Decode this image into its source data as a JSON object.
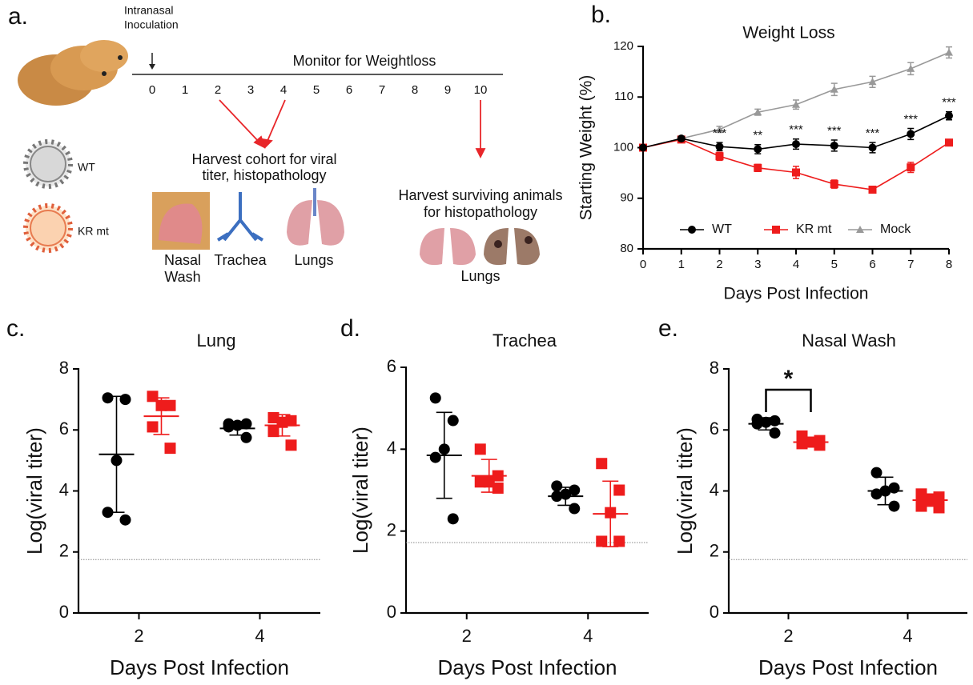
{
  "diagram": {
    "label": "a.",
    "inoculation": [
      "Intranasal",
      "Inoculation"
    ],
    "monitor": "Monitor for Weightloss",
    "timeline": [
      0,
      1,
      2,
      3,
      4,
      5,
      6,
      7,
      8,
      9,
      10
    ],
    "viruses": [
      "WT",
      "KR mt"
    ],
    "harvest_cohort": [
      "Harvest cohort for viral",
      "titer, histopathology"
    ],
    "tissues": [
      [
        "Nasal",
        "Wash"
      ],
      [
        "Trachea"
      ],
      [
        "Lungs"
      ]
    ],
    "harvest_surviving": [
      "Harvest surviving animals",
      "for histopathology"
    ],
    "surviving_tissue": "Lungs"
  },
  "chart_data": [
    {
      "type": "line",
      "panel_label": "b.",
      "title": "Weight Loss",
      "x_label": "Days Post Infection",
      "y_label": "Starting  Weight (%)",
      "x": [
        0,
        1,
        2,
        3,
        4,
        5,
        6,
        7,
        8
      ],
      "xlim": [
        0,
        8
      ],
      "xticks": [
        0,
        1,
        2,
        3,
        4,
        5,
        6,
        7,
        8
      ],
      "ylim": [
        80,
        120
      ],
      "yticks": [
        80,
        90,
        100,
        110,
        120
      ],
      "legend": "lower center",
      "series": [
        {
          "name": "WT",
          "color": "#000000",
          "marker": "circle",
          "values": [
            100,
            101.8,
            100.2,
            99.7,
            100.7,
            100.4,
            100.0,
            102.7,
            106.3
          ],
          "errors": [
            0.3,
            0.4,
            0.8,
            0.9,
            1.0,
            1.1,
            1.0,
            1.1,
            0.8
          ]
        },
        {
          "name": "KR mt",
          "color": "#ee1c1c",
          "marker": "square",
          "values": [
            100,
            101.6,
            98.3,
            96.0,
            95.1,
            92.8,
            91.7,
            96.1,
            101.0
          ],
          "errors": [
            0.3,
            0.4,
            0.8,
            0.7,
            1.2,
            0.8,
            0.6,
            1.0,
            0.6
          ]
        },
        {
          "name": "Mock",
          "color": "#999999",
          "marker": "triangle",
          "values": [
            100,
            101.8,
            103.6,
            107.0,
            108.5,
            111.5,
            113.0,
            115.6,
            118.8
          ],
          "errors": [
            0.3,
            0.3,
            0.6,
            0.6,
            0.9,
            1.2,
            1.1,
            1.2,
            1.1
          ]
        }
      ],
      "annotations": [
        {
          "x": 2,
          "text": "***"
        },
        {
          "x": 3,
          "text": "**"
        },
        {
          "x": 4,
          "text": "***"
        },
        {
          "x": 5,
          "text": "***"
        },
        {
          "x": 6,
          "text": "***"
        },
        {
          "x": 7,
          "text": "***"
        },
        {
          "x": 8,
          "text": "***"
        }
      ]
    },
    {
      "type": "dot",
      "panel_label": "c.",
      "title": "Lung",
      "x_label": "Days Post Infection",
      "y_label": "Log(viral titer)",
      "categories": [
        "2",
        "4"
      ],
      "ylim": [
        0,
        8
      ],
      "yticks": [
        0,
        2,
        4,
        6,
        8
      ],
      "reference_line": 1.75,
      "series": [
        {
          "color": "#000000",
          "marker": "circle",
          "values": [
            [
              7.05,
              7.0,
              5.0,
              3.3,
              3.05
            ],
            [
              6.2,
              6.2,
              6.15,
              6.1,
              5.75
            ]
          ],
          "mean": [
            5.2,
            6.05
          ],
          "sd": [
            1.9,
            0.22
          ]
        },
        {
          "color": "#ee1c1c",
          "marker": "square",
          "values": [
            [
              7.1,
              6.8,
              6.8,
              6.1,
              5.4
            ],
            [
              6.4,
              6.3,
              6.25,
              5.95,
              5.5
            ]
          ],
          "mean": [
            6.45,
            6.15
          ],
          "sd": [
            0.6,
            0.35
          ]
        }
      ]
    },
    {
      "type": "dot",
      "panel_label": "d.",
      "title": "Trachea",
      "x_label": "Days Post Infection",
      "y_label": "Log(viral titer)",
      "categories": [
        "2",
        "4"
      ],
      "ylim": [
        0,
        6
      ],
      "yticks": [
        0,
        2,
        4,
        6
      ],
      "reference_line": 1.72,
      "series": [
        {
          "color": "#000000",
          "marker": "circle",
          "values": [
            [
              5.25,
              4.7,
              4.0,
              3.8,
              2.3
            ],
            [
              3.1,
              3.0,
              2.9,
              2.85,
              2.55
            ]
          ],
          "mean": [
            3.85,
            2.85
          ],
          "sd": [
            1.05,
            0.22
          ]
        },
        {
          "color": "#ee1c1c",
          "marker": "square",
          "values": [
            [
              4.0,
              3.35,
              3.2,
              3.2,
              3.05
            ],
            [
              3.65,
              3.0,
              2.45,
              1.75,
              1.75
            ]
          ],
          "mean": [
            3.35,
            2.42
          ],
          "sd": [
            0.4,
            0.8
          ]
        }
      ]
    },
    {
      "type": "dot",
      "panel_label": "e.",
      "title": "Nasal Wash",
      "x_label": "Days Post Infection",
      "y_label": "Log(viral titer)",
      "categories": [
        "2",
        "4"
      ],
      "ylim": [
        0,
        8
      ],
      "yticks": [
        0,
        2,
        4,
        6,
        8
      ],
      "reference_line": 1.75,
      "significance": [
        {
          "category": "2",
          "text": "*"
        }
      ],
      "series": [
        {
          "color": "#000000",
          "marker": "circle",
          "values": [
            [
              6.35,
              6.3,
              6.25,
              6.2,
              5.9
            ],
            [
              4.6,
              4.1,
              4.0,
              3.9,
              3.5
            ]
          ],
          "mean": [
            6.2,
            4.0
          ],
          "sd": [
            0.2,
            0.45
          ]
        },
        {
          "color": "#ee1c1c",
          "marker": "square",
          "values": [
            [
              5.8,
              5.65,
              5.6,
              5.55,
              5.5
            ],
            [
              3.9,
              3.8,
              3.7,
              3.5,
              3.45
            ]
          ],
          "mean": [
            5.6,
            3.7
          ],
          "sd": [
            0.12,
            0.2
          ]
        }
      ]
    }
  ]
}
